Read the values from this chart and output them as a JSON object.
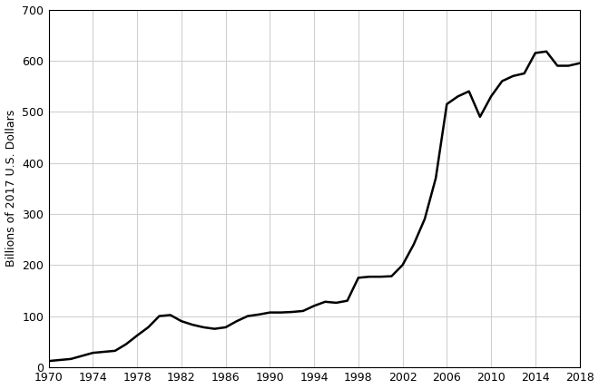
{
  "years": [
    1970,
    1971,
    1972,
    1973,
    1974,
    1975,
    1976,
    1977,
    1978,
    1979,
    1980,
    1981,
    1982,
    1983,
    1984,
    1985,
    1986,
    1987,
    1988,
    1989,
    1990,
    1991,
    1992,
    1993,
    1994,
    1995,
    1996,
    1997,
    1998,
    1999,
    2000,
    2001,
    2002,
    2003,
    2004,
    2005,
    2006,
    2007,
    2008,
    2009,
    2010,
    2011,
    2012,
    2013,
    2014,
    2015,
    2016,
    2017,
    2018
  ],
  "values": [
    12,
    14,
    16,
    22,
    28,
    30,
    32,
    45,
    62,
    78,
    100,
    102,
    90,
    83,
    78,
    75,
    78,
    90,
    100,
    103,
    107,
    107,
    108,
    110,
    120,
    128,
    126,
    130,
    175,
    177,
    177,
    178,
    200,
    240,
    290,
    370,
    515,
    530,
    540,
    490,
    530,
    560,
    570,
    575,
    615,
    618,
    590,
    590,
    595
  ],
  "ylabel": "Billions of 2017 U.S. Dollars",
  "xlim": [
    1970,
    2018
  ],
  "ylim": [
    0,
    700
  ],
  "xticks": [
    1970,
    1974,
    1978,
    1982,
    1986,
    1990,
    1994,
    1998,
    2002,
    2006,
    2010,
    2014,
    2018
  ],
  "yticks": [
    0,
    100,
    200,
    300,
    400,
    500,
    600,
    700
  ],
  "line_color": "#000000",
  "line_width": 1.8,
  "background_color": "#ffffff",
  "grid_color": "#d0d0d0",
  "spine_color": "#000000",
  "tick_labelsize": 9,
  "ylabel_fontsize": 9
}
